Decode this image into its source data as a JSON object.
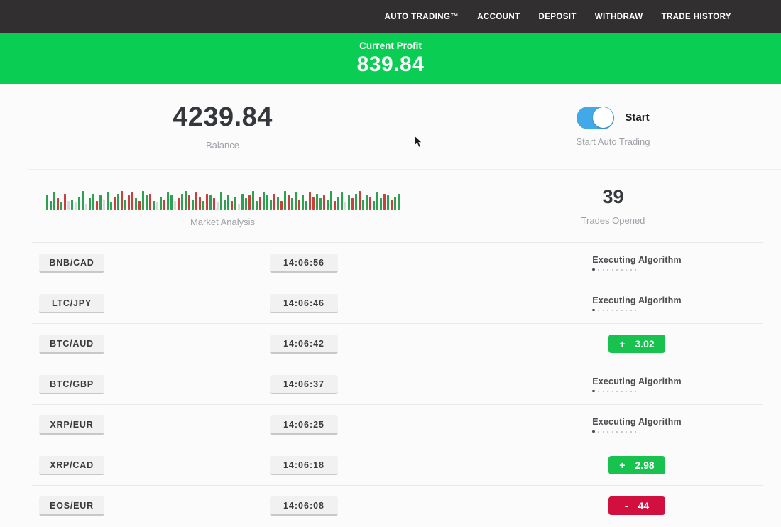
{
  "nav": {
    "items": [
      {
        "label": "AUTO TRADING™"
      },
      {
        "label": "ACCOUNT"
      },
      {
        "label": "DEPOSIT"
      },
      {
        "label": "WITHDRAW"
      },
      {
        "label": "TRADE HISTORY"
      }
    ]
  },
  "profit_banner": {
    "label": "Current Profit",
    "value": "839.84",
    "bg_color": "#0ace53"
  },
  "account": {
    "balance_value": "4239.84",
    "balance_label": "Balance",
    "toggle_label": "Start",
    "toggle_caption": "Start Auto Trading",
    "toggle_on": true,
    "toggle_color": "#42a9e8"
  },
  "market": {
    "label": "Market Analysis",
    "trades_opened_value": "39",
    "trades_opened_label": "Trades Opened",
    "bar_colors": {
      "g": "#2da14f",
      "r": "#c8403c",
      "l": "#d9d9da"
    },
    "bars": [
      "g20",
      "g12",
      "g24",
      "r16",
      "g10",
      "r22",
      "l12",
      "g14",
      "l10",
      "g18",
      "g26",
      "l8",
      "g16",
      "g22",
      "r12",
      "g20",
      "l14",
      "g24",
      "g10",
      "r18",
      "g22",
      "r26",
      "g14",
      "r20",
      "r24",
      "g16",
      "r12",
      "g26",
      "g20",
      "r22",
      "g12",
      "l10",
      "g18",
      "r14",
      "g24",
      "g20",
      "l12",
      "r16",
      "g22",
      "g26",
      "r20",
      "g14",
      "r24",
      "r18",
      "g12",
      "r22",
      "g20",
      "r16",
      "l10",
      "g24",
      "g14",
      "g20",
      "r12",
      "g18",
      "l8",
      "g22",
      "g16",
      "r20",
      "g26",
      "g12",
      "r18",
      "g24",
      "g20",
      "g14",
      "r22",
      "g18",
      "r12",
      "g26",
      "r20",
      "g16",
      "g24",
      "r14",
      "g20",
      "g12",
      "r24",
      "r18",
      "g22",
      "g16",
      "r20",
      "g14",
      "g26",
      "r12",
      "g18",
      "g24",
      "l10",
      "g20",
      "r16",
      "g22",
      "r26",
      "g14",
      "g20",
      "r18",
      "g12",
      "g24",
      "g16",
      "r22",
      "g20",
      "r14",
      "g18",
      "g22"
    ]
  },
  "trades": [
    {
      "pair": "BNB/CAD",
      "time": "14:06:56",
      "status": "executing",
      "status_label": "Executing Algorithm"
    },
    {
      "pair": "LTC/JPY",
      "time": "14:06:46",
      "status": "executing",
      "status_label": "Executing Algorithm"
    },
    {
      "pair": "BTC/AUD",
      "time": "14:06:42",
      "status": "profit",
      "result_sign": "+",
      "result_value": "3.02"
    },
    {
      "pair": "BTC/GBP",
      "time": "14:06:37",
      "status": "executing",
      "status_label": "Executing Algorithm"
    },
    {
      "pair": "XRP/EUR",
      "time": "14:06:25",
      "status": "executing",
      "status_label": "Executing Algorithm"
    },
    {
      "pair": "XRP/CAD",
      "time": "14:06:18",
      "status": "profit",
      "result_sign": "+",
      "result_value": "2.98"
    },
    {
      "pair": "EOS/EUR",
      "time": "14:06:08",
      "status": "loss",
      "result_sign": "-",
      "result_value": "44"
    }
  ],
  "ui": {
    "progress_dot_count": 10,
    "status_colors": {
      "profit": "#17c24f",
      "loss": "#d2103f"
    }
  }
}
